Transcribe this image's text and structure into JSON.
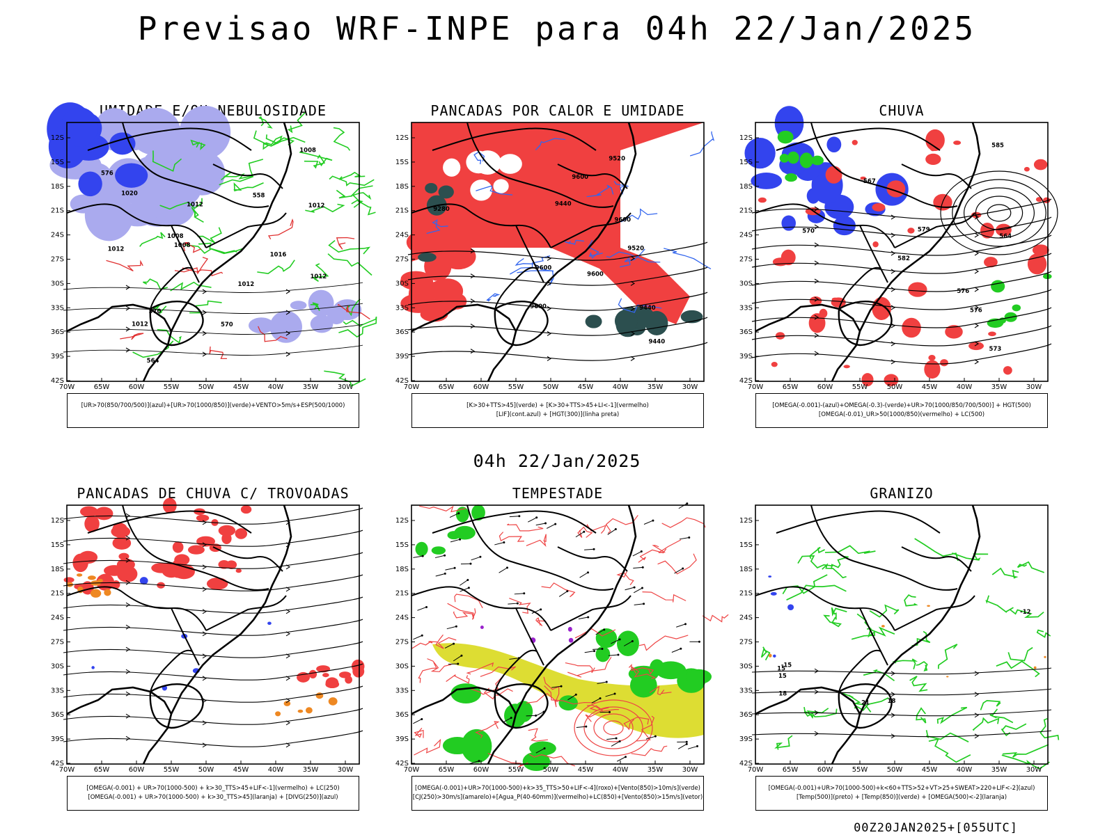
{
  "title": "Previsao WRF-INPE  para 04h 22/Jan/2025",
  "mid_time": "04h 22/Jan/2025",
  "footer": "00Z20JAN2025+[055UTC]",
  "lat_ticks": [
    "12S",
    "15S",
    "18S",
    "21S",
    "24S",
    "27S",
    "30S",
    "33S",
    "36S",
    "39S",
    "42S"
  ],
  "lon_ticks": [
    "70W",
    "65W",
    "60W",
    "55W",
    "50W",
    "45W",
    "40W",
    "35W",
    "30W"
  ],
  "colors": {
    "blue": "#3344ee",
    "lavender": "#aaaaee",
    "green": "#22cc22",
    "red": "#f04040",
    "dark_teal": "#2c4f4f",
    "yellow": "#dddd33",
    "orange": "#ee8822",
    "purple": "#9922cc"
  },
  "panels": [
    {
      "title": "UMIDADE E/OU NEBULOSIDADE",
      "legend": [
        "[UR>70(850/700/500)](azul)+[UR>70(1000/850)](verde)+VENTO>5m/s+ESP(500/1000)"
      ],
      "labels": [
        "1012",
        "1012",
        "1016",
        "1020",
        "1008",
        "1012",
        "1012",
        "1008",
        "1012",
        "1008",
        "1012",
        "570",
        "570",
        "564",
        "558",
        "576"
      ]
    },
    {
      "title": "PANCADAS POR CALOR E UMIDADE",
      "legend": [
        "[K>30+TTS>45](verde) + [K>30+TTS>45+LI<-1](vermelho)",
        "[LIF](cont.azul) + [HGT(300)](linha preta)"
      ],
      "labels": [
        "9600",
        "9600",
        "9600",
        "9600",
        "9520",
        "9600",
        "9520",
        "9440",
        "9440",
        "9280",
        "9440"
      ]
    },
    {
      "title": "CHUVA",
      "legend": [
        "[OMEGA(-0.001)-(azul)+OMEGA(-0.3)-(verde)+UR>70(1000/850/700/500)] + HGT(500)",
        "[OMEGA(-0.01)_UR>50(1000/850)(vermelho) + LC(500)"
      ],
      "labels": [
        "585",
        "582",
        "579",
        "576",
        "576",
        "573",
        "570",
        "567",
        "564"
      ]
    },
    {
      "title": "PANCADAS DE CHUVA C/ TROVOADAS",
      "legend": [
        "[OMEGA(-0.001) + UR>70(1000-500) + k>30_TTS>45+LIF<-1](vermelho) + LC(250)",
        "[OMEGA(-0.001) + UR>70(1000-500) + k>30_TTS>45](laranja) + [DIVG(250)](azul)"
      ],
      "labels": []
    },
    {
      "title": "TEMPESTADE",
      "legend": [
        "[OMEGA(-0.001)+UR>70(1000-500)+k>35_TTS>50+LIF<-4](roxo)+[Vento(850)>10m/s](verde)",
        "[CJ(250)>30m/s](amarelo)+[Agua_P(40-60mm)](vermelho)+LC(850)+[Vento(850)>15m/s](vetor)"
      ],
      "labels": []
    },
    {
      "title": "GRANIZO",
      "legend": [
        "[OMEGA(-0.001)+UR>70(1000-500)+k<60+TTS>52+VT>25+SWEAT>220+LIF<-2](azul)",
        "[Temp(500)](preto) + [Temp(850)](verde) + [OMEGA(500)<-2](laranja)"
      ],
      "labels": [
        "15",
        "18",
        "21",
        "-12",
        "-15",
        "15",
        "18"
      ]
    }
  ]
}
